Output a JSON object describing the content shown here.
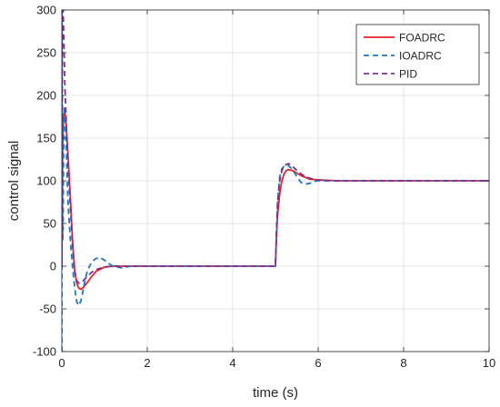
{
  "chart_data": {
    "type": "line",
    "title": "",
    "xlabel": "time (s)",
    "ylabel": "control signal",
    "xlim": [
      0,
      10
    ],
    "ylim": [
      -100,
      300
    ],
    "xticks": [
      0,
      2,
      4,
      6,
      8,
      10
    ],
    "yticks": [
      -100,
      -50,
      0,
      50,
      100,
      150,
      200,
      250,
      300
    ],
    "grid": true,
    "legend_position": "top-right",
    "series": [
      {
        "name": "FOADRC",
        "color": "#e3242b",
        "line_style": "solid",
        "x": [
          0,
          0.01,
          0.02,
          0.04,
          0.06,
          0.08,
          0.1,
          0.12,
          0.15,
          0.2,
          0.25,
          0.3,
          0.35,
          0.4,
          0.45,
          0.5,
          0.6,
          0.7,
          0.8,
          1.0,
          1.2,
          1.5,
          2.0,
          3.0,
          4.0,
          5.0,
          5.02,
          5.05,
          5.1,
          5.15,
          5.2,
          5.25,
          5.3,
          5.4,
          5.5,
          5.6,
          5.7,
          5.8,
          6.0,
          6.5,
          7.0,
          10.0
        ],
        "y": [
          0,
          80,
          140,
          175,
          182,
          178,
          168,
          150,
          125,
          80,
          30,
          -5,
          -20,
          -26,
          -27,
          -25,
          -19,
          -12,
          -6,
          -1,
          0,
          0,
          0,
          0,
          0,
          0,
          30,
          60,
          85,
          100,
          108,
          112,
          113,
          112,
          109,
          106,
          104,
          102,
          101,
          100,
          100,
          100
        ]
      },
      {
        "name": "IOADRC",
        "color": "#1f77c4",
        "line_style": "dashed",
        "x": [
          0,
          0.004,
          0.01,
          0.015,
          0.02,
          0.03,
          0.04,
          0.06,
          0.08,
          0.1,
          0.13,
          0.15,
          0.2,
          0.25,
          0.3,
          0.35,
          0.4,
          0.45,
          0.5,
          0.55,
          0.6,
          0.7,
          0.8,
          0.9,
          1.0,
          1.1,
          1.2,
          1.4,
          1.6,
          2.0,
          3.0,
          4.0,
          5.0,
          5.02,
          5.05,
          5.1,
          5.15,
          5.2,
          5.3,
          5.4,
          5.5,
          5.6,
          5.7,
          5.8,
          5.9,
          6.0,
          6.2,
          6.5,
          7.0,
          10.0
        ],
        "y": [
          -100,
          300,
          255,
          120,
          30,
          40,
          130,
          187,
          178,
          150,
          95,
          70,
          30,
          0,
          -25,
          -42,
          -46,
          -40,
          -28,
          -15,
          -5,
          5,
          9,
          10,
          7,
          3,
          0,
          -2,
          0,
          0,
          0,
          0,
          0,
          30,
          75,
          105,
          114,
          117,
          118,
          113,
          105,
          98,
          96,
          97,
          99,
          100,
          100,
          100,
          100,
          100
        ]
      },
      {
        "name": "PID",
        "color": "#7e2f8e",
        "line_style": "dashed",
        "x": [
          0,
          0.01,
          0.02,
          0.03,
          0.05,
          0.07,
          0.09,
          0.12,
          0.15,
          0.2,
          0.25,
          0.3,
          0.35,
          0.4,
          0.45,
          0.5,
          0.6,
          0.7,
          0.8,
          1.0,
          1.2,
          1.5,
          2.0,
          3.0,
          4.0,
          5.0,
          5.02,
          5.05,
          5.1,
          5.15,
          5.2,
          5.25,
          5.3,
          5.35,
          5.4,
          5.5,
          5.6,
          5.7,
          5.8,
          6.0,
          6.3,
          6.8,
          10.0
        ],
        "y": [
          0,
          300,
          300,
          300,
          260,
          215,
          185,
          150,
          115,
          70,
          25,
          -5,
          -17,
          -20,
          -19,
          -17,
          -12,
          -7,
          -4,
          -1,
          0,
          0,
          0,
          0,
          0,
          0,
          35,
          75,
          100,
          112,
          117,
          119,
          120,
          119,
          117,
          112,
          108,
          105,
          103,
          101,
          100,
          100,
          100
        ]
      }
    ]
  }
}
